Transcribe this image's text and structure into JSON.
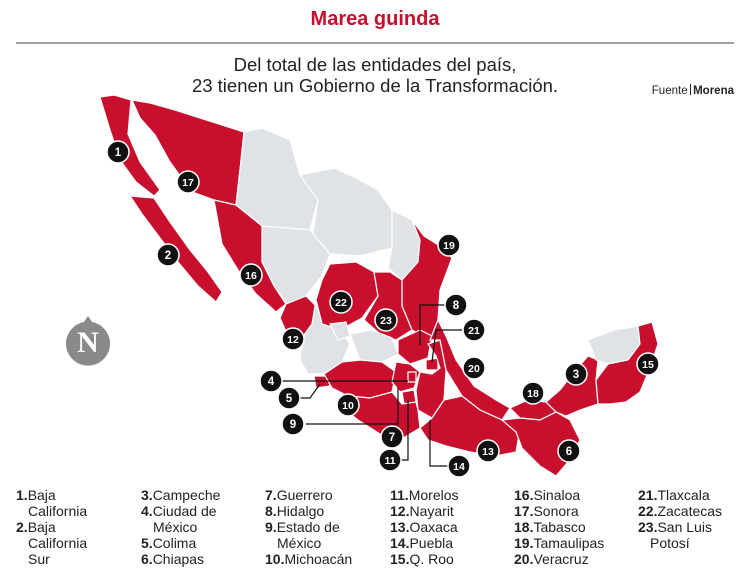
{
  "header": {
    "title": "Marea guinda",
    "subtitle_line1": "Del total de las entidades del país,",
    "subtitle_line2": "23 tienen un Gobierno de la Transformación.",
    "source_label": "Fuente",
    "source_name": "Morena"
  },
  "colors": {
    "governed": "#c8102e",
    "other": "#dfe2e6",
    "border": "#ffffff",
    "marker": "#111111",
    "logo": "#8a8a8a"
  },
  "logo": {
    "letter": "N"
  },
  "markers": [
    "1",
    "2",
    "3",
    "4",
    "5",
    "6",
    "7",
    "8",
    "9",
    "10",
    "11",
    "12",
    "13",
    "14",
    "15",
    "16",
    "17",
    "18",
    "19",
    "20",
    "21",
    "22",
    "23"
  ],
  "legend": [
    {
      "num": "1.",
      "lines": [
        "Baja",
        "California"
      ]
    },
    {
      "num": "2.",
      "lines": [
        "Baja",
        "California",
        "Sur"
      ]
    },
    {
      "num": "3.",
      "lines": [
        "Campeche"
      ]
    },
    {
      "num": "4.",
      "lines": [
        "Ciudad de",
        "México"
      ]
    },
    {
      "num": "5.",
      "lines": [
        "Colima"
      ]
    },
    {
      "num": "6.",
      "lines": [
        "Chiapas"
      ]
    },
    {
      "num": "7.",
      "lines": [
        "Guerrero"
      ]
    },
    {
      "num": "8.",
      "lines": [
        "Hidalgo"
      ]
    },
    {
      "num": "9.",
      "lines": [
        "Estado de",
        "México"
      ]
    },
    {
      "num": "10.",
      "lines": [
        "Michoacán"
      ]
    },
    {
      "num": "11.",
      "lines": [
        "Morelos"
      ]
    },
    {
      "num": "12.",
      "lines": [
        "Nayarit"
      ]
    },
    {
      "num": "13.",
      "lines": [
        "Oaxaca"
      ]
    },
    {
      "num": "14.",
      "lines": [
        "Puebla"
      ]
    },
    {
      "num": "15.",
      "lines": [
        "Q. Roo"
      ]
    },
    {
      "num": "16.",
      "lines": [
        "Sinaloa"
      ]
    },
    {
      "num": "17.",
      "lines": [
        "Sonora"
      ]
    },
    {
      "num": "18.",
      "lines": [
        "Tabasco"
      ]
    },
    {
      "num": "19.",
      "lines": [
        "Tamaulipas"
      ]
    },
    {
      "num": "20.",
      "lines": [
        "Veracruz"
      ]
    },
    {
      "num": "21.",
      "lines": [
        "Tlaxcala"
      ]
    },
    {
      "num": "22.",
      "lines": [
        "Zacatecas"
      ]
    },
    {
      "num": "23.",
      "lines": [
        "San Luis",
        "Potosí"
      ]
    }
  ]
}
